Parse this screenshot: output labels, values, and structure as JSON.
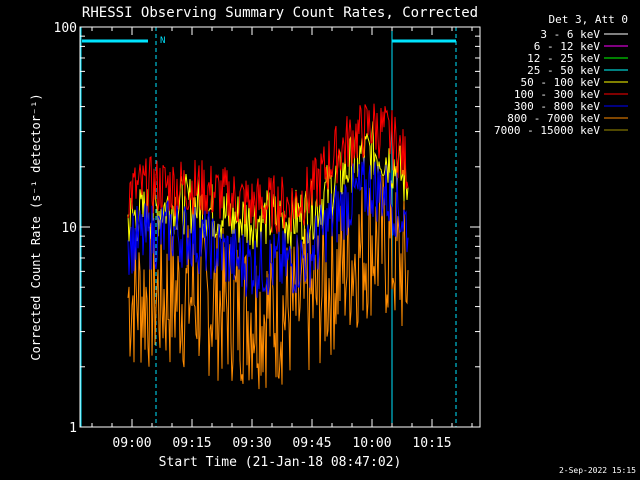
{
  "chart_data": {
    "type": "line",
    "title": "RHESSI Observing Summary Count Rates, Corrected",
    "xlabel": "Start Time (21-Jan-18 08:47:02)",
    "ylabel": "Corrected Count Rate (s⁻¹ detector⁻¹)",
    "x_ticks": [
      "09:00",
      "09:15",
      "09:30",
      "09:45",
      "10:00",
      "10:15"
    ],
    "xlim": [
      "08:47",
      "10:27"
    ],
    "y_scale": "log",
    "ylim": [
      1,
      100
    ],
    "y_ticks": [
      "1",
      "10",
      "100"
    ],
    "legend_title": "Det 3, Att 0",
    "legend_position": "right",
    "series": [
      {
        "name": "3 - 6 keV",
        "color": "#ffffff"
      },
      {
        "name": "6 - 12 keV",
        "color": "#ff00ff"
      },
      {
        "name": "12 - 25 keV",
        "color": "#00ff00"
      },
      {
        "name": "25 - 50 keV",
        "color": "#00ffff"
      },
      {
        "name": "50 - 100 keV",
        "color": "#ffff00",
        "x": [
          "08:59",
          "09:05",
          "09:10",
          "09:15",
          "09:20",
          "09:25",
          "09:30",
          "09:35",
          "09:40",
          "09:45",
          "09:50",
          "09:55",
          "10:00",
          "10:03",
          "10:06",
          "10:09"
        ],
        "values": [
          11,
          12,
          13,
          13,
          12,
          11,
          11,
          11,
          11,
          12,
          16,
          21,
          24,
          23,
          20,
          16
        ]
      },
      {
        "name": "100 - 300 keV",
        "color": "#ff0000",
        "x": [
          "08:59",
          "09:05",
          "09:10",
          "09:15",
          "09:20",
          "09:25",
          "09:30",
          "09:35",
          "09:40",
          "09:45",
          "09:50",
          "09:55",
          "10:00",
          "10:03",
          "10:06",
          "10:09"
        ],
        "values": [
          15,
          16,
          16,
          16,
          15,
          14,
          13,
          13,
          13,
          15,
          22,
          28,
          32,
          30,
          26,
          20
        ]
      },
      {
        "name": "300 - 800 keV",
        "color": "#0000ff",
        "x": [
          "08:59",
          "09:05",
          "09:10",
          "09:15",
          "09:20",
          "09:25",
          "09:30",
          "09:35",
          "09:40",
          "09:45",
          "09:50",
          "09:55",
          "10:00",
          "10:03",
          "10:06",
          "10:09"
        ],
        "values": [
          8.5,
          9,
          9.5,
          9,
          8,
          7,
          6.5,
          6.5,
          6.5,
          7.5,
          11,
          14,
          16,
          15,
          13,
          10
        ]
      },
      {
        "name": "800 - 7000 keV",
        "color": "#ff8c00",
        "x": [
          "08:59",
          "09:05",
          "09:10",
          "09:15",
          "09:20",
          "09:25",
          "09:30",
          "09:35",
          "09:40",
          "09:45",
          "09:50",
          "09:55",
          "10:00",
          "10:03",
          "10:06",
          "10:09"
        ],
        "values": [
          4.5,
          4.5,
          4.5,
          4.5,
          4.2,
          4,
          3.8,
          3.8,
          3.8,
          4.2,
          5.5,
          7,
          8.5,
          8,
          7,
          5.5
        ]
      },
      {
        "name": "7000 - 15000 keV",
        "color": "#a09000"
      }
    ],
    "annotations": [
      "N"
    ],
    "footer_date": "2-Sep-2022 15:15",
    "grid": false,
    "colors": {
      "background": "#000000",
      "axes": "#ffffff",
      "markers": "#00e5ff"
    }
  }
}
